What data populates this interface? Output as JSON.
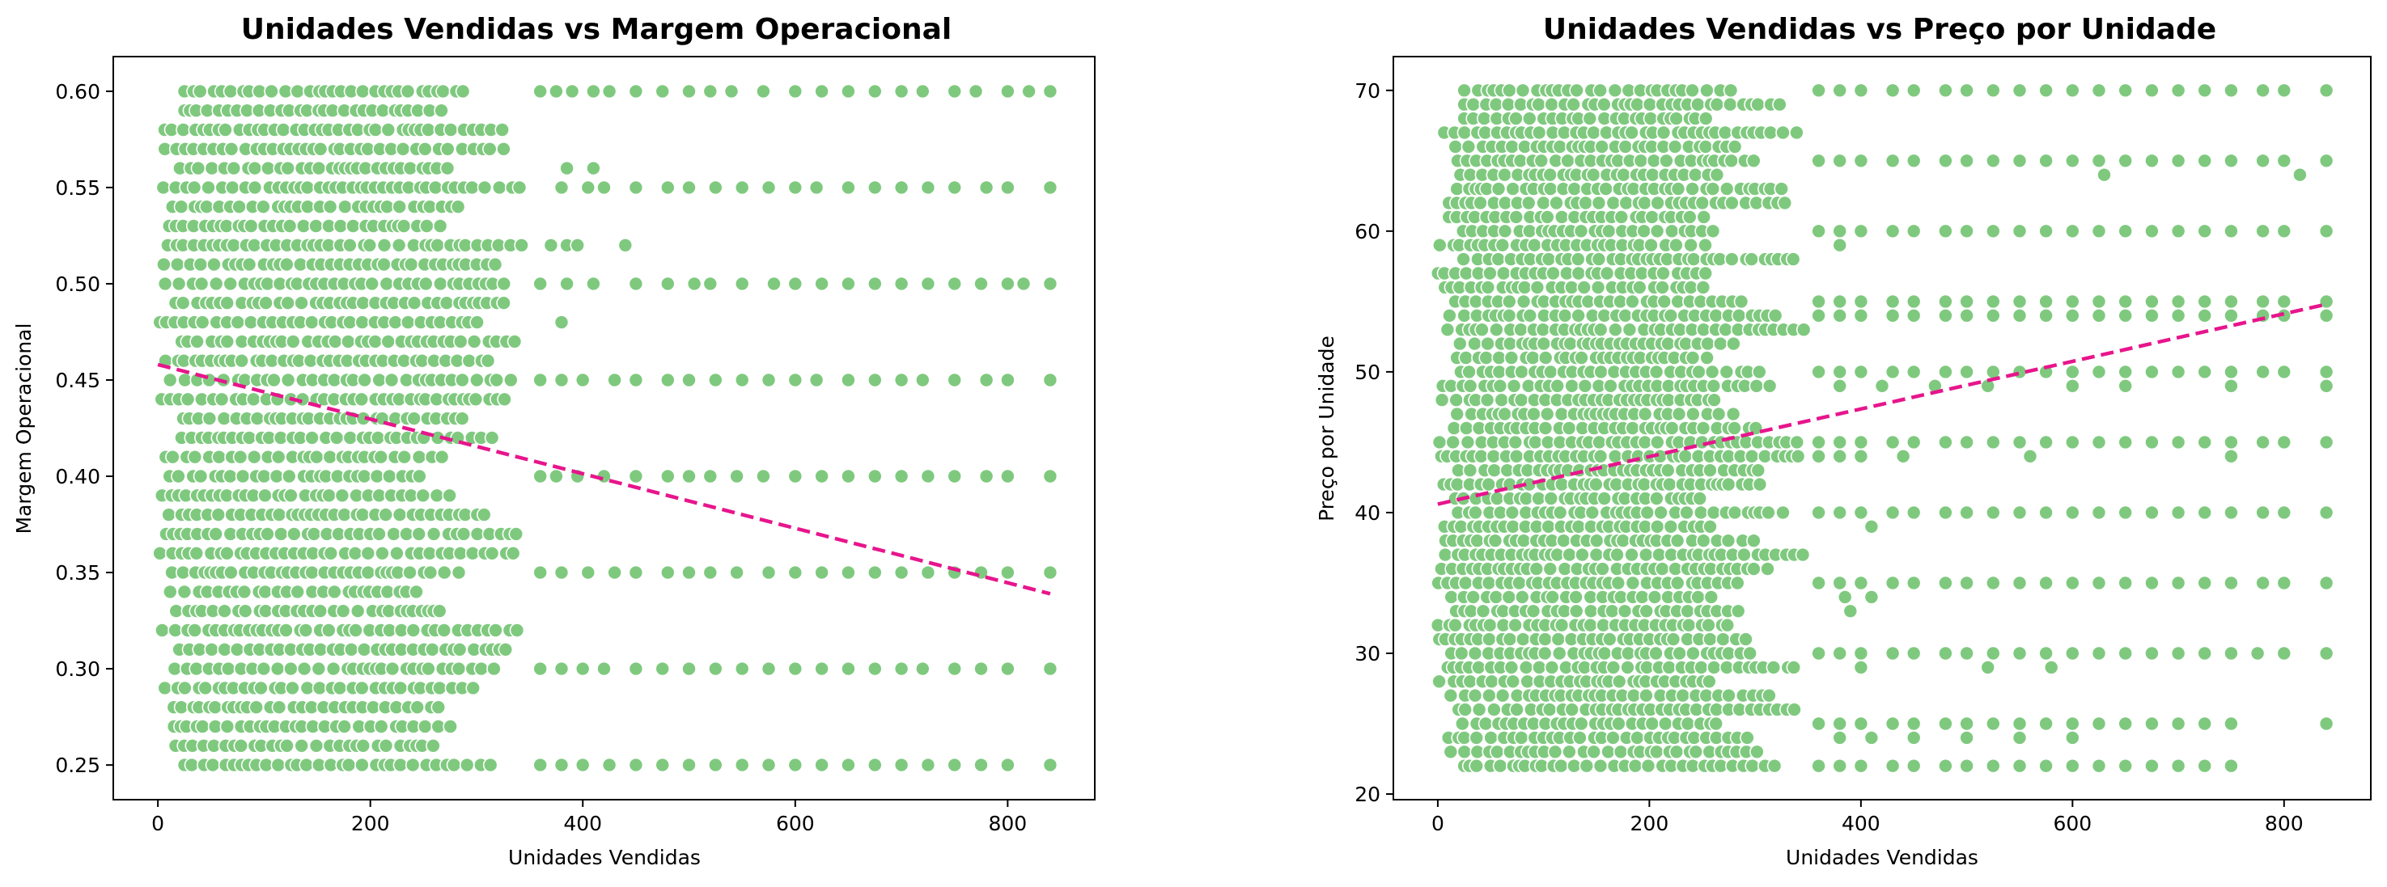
{
  "colors": {
    "points": "#7fc97f",
    "trend": "#e7158c"
  },
  "chart_data": [
    {
      "type": "scatter",
      "title": "Unidades Vendidas vs Margem Operacional",
      "xlabel": "Unidades Vendidas",
      "ylabel": "Margem Operacional",
      "xlim": [
        -42,
        882
      ],
      "ylim": [
        0.232,
        0.618
      ],
      "xticks": [
        0,
        200,
        400,
        600,
        800
      ],
      "xtick_labels": [
        "0",
        "200",
        "400",
        "600",
        "800"
      ],
      "yticks": [
        0.25,
        0.3,
        0.35,
        0.4,
        0.45,
        0.5,
        0.55,
        0.6
      ],
      "ytick_labels": [
        "0.25",
        "0.30",
        "0.35",
        "0.40",
        "0.45",
        "0.50",
        "0.55",
        "0.60"
      ],
      "grid": false,
      "trendline": {
        "x": [
          0,
          840
        ],
        "y": [
          0.458,
          0.339
        ],
        "style": "dashed"
      },
      "series": [
        {
          "points": {
            "dense": {
              "x_range": [
                0,
                350
              ],
              "y_levels": [
                0.25,
                0.26,
                0.27,
                0.28,
                0.29,
                0.3,
                0.31,
                0.32,
                0.33,
                0.34,
                0.35,
                0.36,
                0.37,
                0.38,
                0.39,
                0.4,
                0.41,
                0.42,
                0.43,
                0.44,
                0.45,
                0.46,
                0.47,
                0.48,
                0.49,
                0.5,
                0.51,
                0.52,
                0.53,
                0.54,
                0.55,
                0.56,
                0.57,
                0.58,
                0.59,
                0.6
              ]
            },
            "sparse": [
              {
                "y": 0.6,
                "x": [
                  360,
                  375,
                  390,
                  410,
                  425,
                  450,
                  475,
                  500,
                  520,
                  540,
                  570,
                  600,
                  625,
                  650,
                  675,
                  700,
                  720,
                  750,
                  770,
                  800,
                  820,
                  840
                ]
              },
              {
                "y": 0.56,
                "x": [
                  385,
                  410
                ]
              },
              {
                "y": 0.55,
                "x": [
                  380,
                  405,
                  420,
                  450,
                  480,
                  500,
                  525,
                  550,
                  575,
                  600,
                  620,
                  650,
                  675,
                  700,
                  725,
                  750,
                  780,
                  800,
                  840
                ]
              },
              {
                "y": 0.52,
                "x": [
                  370,
                  385,
                  395,
                  440
                ]
              },
              {
                "y": 0.5,
                "x": [
                  360,
                  385,
                  410,
                  450,
                  480,
                  505,
                  520,
                  550,
                  580,
                  600,
                  625,
                  650,
                  675,
                  700,
                  725,
                  750,
                  775,
                  800,
                  815,
                  840
                ]
              },
              {
                "y": 0.48,
                "x": [
                  380
                ]
              },
              {
                "y": 0.45,
                "x": [
                  360,
                  380,
                  400,
                  430,
                  450,
                  480,
                  500,
                  525,
                  550,
                  575,
                  600,
                  620,
                  650,
                  675,
                  700,
                  720,
                  750,
                  780,
                  800,
                  840
                ]
              },
              {
                "y": 0.4,
                "x": [
                  360,
                  375,
                  395,
                  420,
                  450,
                  480,
                  500,
                  520,
                  545,
                  570,
                  600,
                  625,
                  650,
                  675,
                  700,
                  725,
                  750,
                  780,
                  800,
                  840
                ]
              },
              {
                "y": 0.35,
                "x": [
                  360,
                  380,
                  405,
                  430,
                  450,
                  480,
                  500,
                  520,
                  545,
                  575,
                  600,
                  625,
                  650,
                  675,
                  700,
                  725,
                  750,
                  775,
                  800,
                  840
                ]
              },
              {
                "y": 0.3,
                "x": [
                  360,
                  380,
                  400,
                  420,
                  450,
                  475,
                  500,
                  525,
                  550,
                  575,
                  600,
                  625,
                  650,
                  675,
                  700,
                  720,
                  750,
                  775,
                  800,
                  840
                ]
              },
              {
                "y": 0.25,
                "x": [
                  360,
                  380,
                  400,
                  425,
                  450,
                  475,
                  500,
                  525,
                  550,
                  575,
                  600,
                  625,
                  650,
                  675,
                  700,
                  725,
                  750,
                  775,
                  800,
                  840
                ]
              }
            ]
          }
        }
      ]
    },
    {
      "type": "scatter",
      "title": "Unidades Vendidas vs Preço por Unidade",
      "xlabel": "Unidades Vendidas",
      "ylabel": "Preço por Unidade",
      "xlim": [
        -42,
        882
      ],
      "ylim": [
        19.6,
        72.4
      ],
      "xticks": [
        0,
        200,
        400,
        600,
        800
      ],
      "xtick_labels": [
        "0",
        "200",
        "400",
        "600",
        "800"
      ],
      "yticks": [
        20,
        30,
        40,
        50,
        60,
        70
      ],
      "ytick_labels": [
        "20",
        "30",
        "40",
        "50",
        "60",
        "70"
      ],
      "grid": false,
      "trendline": {
        "x": [
          0,
          840
        ],
        "y": [
          40.6,
          54.8
        ],
        "style": "dashed"
      },
      "series": [
        {
          "points": {
            "dense": {
              "x_range": [
                0,
                350
              ],
              "y_levels": [
                22,
                23,
                24,
                25,
                26,
                27,
                28,
                29,
                30,
                31,
                32,
                33,
                34,
                35,
                36,
                37,
                38,
                39,
                40,
                41,
                42,
                43,
                44,
                45,
                46,
                47,
                48,
                49,
                50,
                51,
                52,
                53,
                54,
                55,
                56,
                57,
                58,
                59,
                60,
                61,
                62,
                63,
                64,
                65,
                66,
                67,
                68,
                69,
                70
              ]
            },
            "sparse": [
              {
                "y": 70,
                "x": [
                  360,
                  380,
                  400,
                  430,
                  450,
                  480,
                  500,
                  525,
                  550,
                  575,
                  600,
                  625,
                  650,
                  675,
                  700,
                  725,
                  750,
                  780,
                  800,
                  840
                ]
              },
              {
                "y": 65,
                "x": [
                  360,
                  380,
                  400,
                  430,
                  450,
                  480,
                  500,
                  525,
                  550,
                  575,
                  600,
                  625,
                  650,
                  675,
                  700,
                  725,
                  750,
                  780,
                  800,
                  840
                ]
              },
              {
                "y": 64,
                "x": [
                  630,
                  815
                ]
              },
              {
                "y": 60,
                "x": [
                  360,
                  380,
                  400,
                  430,
                  450,
                  480,
                  500,
                  525,
                  550,
                  575,
                  600,
                  625,
                  650,
                  675,
                  700,
                  725,
                  750,
                  780,
                  800,
                  840
                ]
              },
              {
                "y": 59,
                "x": [
                  380
                ]
              },
              {
                "y": 55,
                "x": [
                  360,
                  380,
                  400,
                  430,
                  450,
                  480,
                  500,
                  525,
                  550,
                  575,
                  600,
                  625,
                  650,
                  675,
                  700,
                  725,
                  750,
                  780,
                  800,
                  840
                ]
              },
              {
                "y": 54,
                "x": [
                  360,
                  380,
                  400,
                  430,
                  450,
                  480,
                  500,
                  525,
                  550,
                  575,
                  600,
                  625,
                  650,
                  675,
                  700,
                  725,
                  750,
                  780,
                  800,
                  840
                ]
              },
              {
                "y": 50,
                "x": [
                  360,
                  380,
                  400,
                  430,
                  450,
                  480,
                  500,
                  525,
                  550,
                  575,
                  600,
                  625,
                  650,
                  675,
                  700,
                  725,
                  750,
                  780,
                  800,
                  840
                ]
              },
              {
                "y": 49,
                "x": [
                  380,
                  420,
                  470,
                  520,
                  600,
                  650,
                  750,
                  840
                ]
              },
              {
                "y": 45,
                "x": [
                  360,
                  380,
                  400,
                  430,
                  450,
                  480,
                  500,
                  525,
                  550,
                  575,
                  600,
                  625,
                  650,
                  675,
                  700,
                  725,
                  750,
                  780,
                  800,
                  840
                ]
              },
              {
                "y": 44,
                "x": [
                  360,
                  380,
                  400,
                  440,
                  560,
                  750
                ]
              },
              {
                "y": 40,
                "x": [
                  360,
                  380,
                  400,
                  430,
                  450,
                  480,
                  500,
                  525,
                  550,
                  575,
                  600,
                  625,
                  650,
                  675,
                  700,
                  725,
                  750,
                  780,
                  800,
                  840
                ]
              },
              {
                "y": 39,
                "x": [
                  410
                ]
              },
              {
                "y": 35,
                "x": [
                  360,
                  380,
                  400,
                  430,
                  450,
                  480,
                  500,
                  525,
                  550,
                  575,
                  600,
                  625,
                  650,
                  675,
                  700,
                  725,
                  750,
                  780,
                  800,
                  840
                ]
              },
              {
                "y": 34,
                "x": [
                  385,
                  410
                ]
              },
              {
                "y": 33,
                "x": [
                  390
                ]
              },
              {
                "y": 30,
                "x": [
                  360,
                  380,
                  400,
                  430,
                  450,
                  480,
                  500,
                  525,
                  550,
                  575,
                  600,
                  625,
                  650,
                  675,
                  700,
                  725,
                  750,
                  775,
                  800,
                  840
                ]
              },
              {
                "y": 29,
                "x": [
                  400,
                  520,
                  580
                ]
              },
              {
                "y": 25,
                "x": [
                  360,
                  380,
                  400,
                  430,
                  450,
                  480,
                  500,
                  525,
                  550,
                  575,
                  600,
                  625,
                  650,
                  675,
                  700,
                  725,
                  750,
                  840
                ]
              },
              {
                "y": 24,
                "x": [
                  380,
                  410,
                  450,
                  500,
                  550,
                  600
                ]
              },
              {
                "y": 22,
                "x": [
                  360,
                  380,
                  400,
                  430,
                  450,
                  480,
                  500,
                  525,
                  550,
                  575,
                  600,
                  625,
                  650,
                  675,
                  700,
                  725,
                  750
                ]
              }
            ]
          }
        }
      ]
    }
  ]
}
